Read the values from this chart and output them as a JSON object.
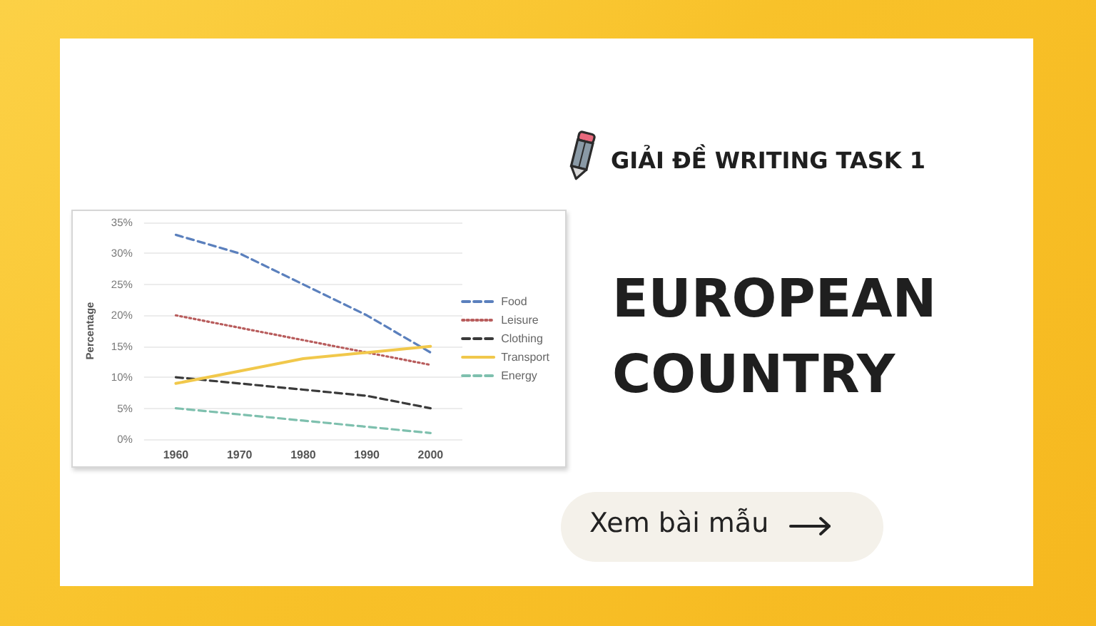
{
  "chart_data": {
    "type": "line",
    "title": "EUROPEAN COUNTRY",
    "subtitle": "GIẢI ĐỀ WRITING TASK 1",
    "ylabel": "Percentage",
    "annotations": [
      "Xem bài mẫu"
    ],
    "categories": [
      "1960",
      "1970",
      "1980",
      "1990",
      "2000"
    ],
    "series": [
      {
        "name": "Food",
        "color": "#5b80bd",
        "line_style": "dashed",
        "values": [
          33,
          30,
          25,
          20,
          14
        ]
      },
      {
        "name": "Leisure",
        "color": "#b85c5c",
        "line_style": "dotted",
        "values": [
          20,
          18,
          16,
          14,
          12
        ]
      },
      {
        "name": "Clothing",
        "color": "#3a3a3a",
        "line_style": "dashed",
        "values": [
          10,
          9,
          8,
          7,
          5
        ]
      },
      {
        "name": "Transport",
        "color": "#f1c84b",
        "line_style": "solid",
        "values": [
          9,
          11,
          13,
          14,
          15
        ]
      },
      {
        "name": "Energy",
        "color": "#7ec0ae",
        "line_style": "dashed",
        "values": [
          5,
          4,
          3,
          2,
          1
        ]
      }
    ],
    "ylim": [
      0,
      35
    ],
    "yticks": [
      {
        "value": 0,
        "label": "0%"
      },
      {
        "value": 5,
        "label": "5%"
      },
      {
        "value": 10,
        "label": "10%"
      },
      {
        "value": 15,
        "label": "15%"
      },
      {
        "value": 20,
        "label": "20%"
      },
      {
        "value": 25,
        "label": "25%"
      },
      {
        "value": 30,
        "label": "30%"
      },
      {
        "value": 35,
        "label": "35%"
      }
    ],
    "grid": "y",
    "legend": "right",
    "marker": "none"
  }
}
